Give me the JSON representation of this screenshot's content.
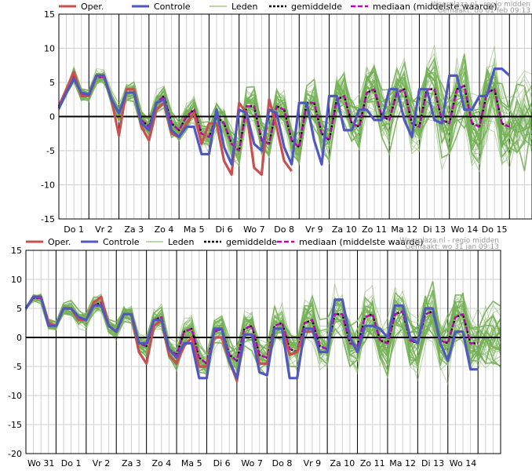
{
  "legend": {
    "oper": "Oper.",
    "controle": "Controle",
    "leden": "Leden",
    "gemiddelde": "gemiddelde",
    "mediaan": "mediaan (middelste waarde)"
  },
  "colors": {
    "oper": "#c85050",
    "controle": "#5058c0",
    "members": "#74b056",
    "mean": "#000000",
    "median": "#c000c0",
    "grid_major": "#000000",
    "grid_minor": "#cfcfcf"
  },
  "chart_data": [
    {
      "type": "line",
      "credit_line1": "Weerplaza.nl - regio midden",
      "credit_line2": "Gemaakt: do 01 feb 09:13",
      "ylim": [
        -15,
        15
      ],
      "yticks": [
        15,
        10,
        5,
        0,
        -5,
        -10,
        -15
      ],
      "xlim": [
        0,
        63
      ],
      "x_step_hours": 6,
      "day_labels": [
        "Do 1",
        "Vr 2",
        "Za 3",
        "Zo 4",
        "Ma 5",
        "Di 6",
        "Wo 7",
        "Do 8",
        "Vr 9",
        "Za 10",
        "Zo 11",
        "Ma 12",
        "Di 13",
        "Wo 14",
        "Do 15"
      ],
      "day_boundaries": [
        0,
        4,
        8,
        12,
        16,
        20,
        24,
        28,
        32,
        36,
        40,
        44,
        48,
        52,
        56,
        60
      ],
      "series": [
        {
          "name": "Oper.",
          "values": [
            1.5,
            4,
            6.5,
            3,
            3,
            6,
            6,
            2.5,
            -2.8,
            4,
            4,
            -1.5,
            -3.5,
            1,
            2,
            -2.5,
            -3,
            -1,
            0.5,
            -4,
            -1,
            -1,
            -6.5,
            -8.5,
            2,
            0.5,
            -7.5,
            -8.5,
            2.5,
            -1.5,
            -6.5,
            -8
          ]
        },
        {
          "name": "Controle",
          "values": [
            1.2,
            3.5,
            5.5,
            3.5,
            3.2,
            6,
            6,
            2.5,
            0.5,
            3.5,
            3.5,
            -1,
            -2,
            2,
            2.5,
            -2,
            -3,
            -1.5,
            -1.5,
            -5.5,
            -5.5,
            1,
            -4.5,
            -7,
            1,
            0.5,
            -4,
            -5,
            1,
            0.5,
            -4.5,
            -7,
            2,
            2,
            -3.5,
            -7,
            3,
            3,
            -2,
            -2,
            1,
            1,
            -0.5,
            -0.5,
            4,
            4,
            -0.5,
            -3,
            4,
            4,
            -0.5,
            -1,
            6,
            6,
            1,
            1,
            3,
            3,
            7,
            7,
            6
          ]
        },
        {
          "name": "gemiddelde",
          "values": [
            1.3,
            3.5,
            6,
            3.2,
            3,
            5.8,
            5.8,
            2.5,
            0.5,
            3.5,
            3.5,
            -0.5,
            -1.5,
            2,
            3,
            -1,
            -2,
            0,
            1,
            -2.5,
            -3,
            0,
            -1,
            -4,
            -5,
            1.5,
            1.5,
            -3.5,
            -4,
            1.5,
            1,
            -3.5,
            -4.5,
            2,
            2,
            -2.5,
            -3.5,
            2.5,
            3,
            -1,
            -1.5,
            3.5,
            4,
            0,
            -0.5,
            3.5,
            4,
            -1,
            -1.5,
            4,
            4,
            -0.5,
            -1,
            4,
            4.5,
            -1,
            -1.5,
            3.5,
            4,
            -1,
            -1.5
          ]
        },
        {
          "name": "mediaan (middelste waarde)",
          "values": [
            1.3,
            3.5,
            6,
            3.2,
            3,
            5.8,
            5.8,
            2.5,
            0.5,
            3.5,
            3.5,
            -0.5,
            -1.5,
            2,
            3,
            -1,
            -2,
            0,
            1,
            -2.5,
            -3,
            0,
            -1,
            -4,
            -5,
            1.5,
            1.5,
            -3.5,
            -4,
            1.5,
            1,
            -3.5,
            -4.5,
            2,
            2,
            -2.5,
            -3.5,
            2.5,
            3,
            -1,
            -1.5,
            3.5,
            4,
            0,
            -0.5,
            3.5,
            4,
            -1,
            -1.5,
            4,
            4,
            -0.5,
            -1,
            4,
            4.5,
            -1,
            -1.5,
            3.5,
            4,
            -1,
            -1.5
          ]
        }
      ],
      "members_count": 40,
      "member_spread": [
        0.5,
        0.8,
        1,
        1,
        1,
        1,
        1.2,
        1.5,
        1.5,
        1.5,
        1.5,
        1.5,
        1.5,
        1.5,
        1.5,
        1.5,
        2,
        2,
        2,
        2,
        2,
        2,
        2.5,
        2.5,
        2.5,
        2.5,
        2.5,
        2.5,
        3,
        3,
        3,
        3,
        3,
        3,
        3.5,
        3.5,
        3.5,
        3.5,
        4,
        4,
        4,
        4,
        4,
        4,
        4.5,
        4.5,
        4.5,
        4.5,
        5,
        5,
        5,
        5,
        5,
        5,
        5.5,
        5.5,
        5.5,
        5.5,
        6,
        6,
        6
      ]
    },
    {
      "type": "line",
      "credit_line1": "Weerplaza.nl - regio midden",
      "credit_line2": "Gemaakt: wo 31 jan 09:13",
      "ylim": [
        -20,
        15
      ],
      "yticks": [
        15,
        10,
        5,
        0,
        -5,
        -10,
        -15,
        -20
      ],
      "xlim": [
        0,
        63
      ],
      "x_step_hours": 6,
      "day_labels": [
        "Wo 31",
        "Do 1",
        "Vr 2",
        "Za 3",
        "Zo 4",
        "Ma 5",
        "Di 6",
        "Wo 7",
        "Do 8",
        "Vr 9",
        "Za 10",
        "Zo 11",
        "Ma 12",
        "Di 13",
        "Wo 14"
      ],
      "day_boundaries": [
        0,
        4,
        8,
        12,
        16,
        20,
        24,
        28,
        32,
        36,
        40,
        44,
        48,
        52,
        56,
        60
      ],
      "series": [
        {
          "name": "Oper.",
          "values": [
            5,
            7,
            7,
            2.5,
            2,
            5,
            5,
            3,
            3,
            6,
            7,
            2,
            1,
            4,
            4,
            -2.5,
            -4.5,
            2,
            3,
            -3,
            -4.5,
            -1.5,
            0,
            -5,
            -5,
            0,
            0,
            -4,
            -7.5,
            0.5,
            0.5,
            -4.5,
            -4.5,
            1.5,
            1.5,
            -3,
            -2.5,
            1,
            1
          ]
        },
        {
          "name": "Controle",
          "values": [
            5,
            7,
            7,
            2,
            2,
            5,
            5,
            3.5,
            3,
            5.5,
            5.5,
            2,
            1,
            4,
            4,
            -1,
            -1,
            3,
            3,
            -2,
            -3.5,
            -1,
            -1,
            -7,
            -7,
            1.5,
            1.5,
            -4,
            -7,
            0.5,
            0.5,
            -6,
            -6.5,
            1.5,
            1.5,
            -7,
            -7,
            1.5,
            1.5,
            -2.5,
            -2.5,
            6.5,
            6.5,
            0,
            -2.5,
            2,
            2,
            1.5,
            0,
            5.5,
            5.5,
            0,
            -1,
            5,
            5,
            -1,
            -4,
            1,
            1,
            -5.5,
            -5.5
          ]
        },
        {
          "name": "gemiddelde",
          "values": [
            5,
            6.8,
            6.8,
            2.3,
            2,
            5,
            5,
            3.3,
            3,
            5.5,
            6,
            2,
            1,
            4,
            4,
            -1,
            -1.5,
            3,
            3.5,
            -2,
            -3,
            1,
            1.5,
            -3.5,
            -4.5,
            1,
            1.5,
            -3,
            -4,
            1.5,
            2,
            -3,
            -3.5,
            2,
            2.5,
            -2,
            -2.5,
            2.5,
            3,
            -1.5,
            -2,
            4,
            4,
            -1,
            -1.5,
            3.5,
            4,
            -0.5,
            -1,
            4,
            4.5,
            -0.5,
            -1,
            4,
            4.5,
            -0.5,
            -1,
            3.5,
            4,
            -1,
            -1
          ]
        },
        {
          "name": "mediaan (middelste waarde)",
          "values": [
            5,
            6.8,
            6.8,
            2.3,
            2,
            5,
            5,
            3.3,
            3,
            5.5,
            6,
            2,
            1,
            4,
            4,
            -1,
            -1.5,
            3,
            3.5,
            -2,
            -3,
            1,
            1.5,
            -3.5,
            -4.5,
            1,
            1.5,
            -3,
            -4,
            1.5,
            2,
            -3,
            -3.5,
            2,
            2.5,
            -2,
            -2.5,
            2.5,
            3,
            -1.5,
            -2,
            4,
            4,
            -1,
            -1.5,
            3.5,
            4,
            -0.5,
            -1,
            4,
            4.5,
            -0.5,
            -1,
            4,
            4.5,
            -0.5,
            -1,
            3.5,
            4,
            -1,
            -1
          ]
        }
      ],
      "members_count": 40,
      "member_spread": [
        0.5,
        0.8,
        1,
        1,
        1,
        1,
        1.2,
        1.5,
        1.5,
        1.5,
        1.5,
        1.5,
        1.5,
        1.5,
        1.5,
        1.5,
        2,
        2,
        2,
        2,
        2,
        2,
        2.5,
        2.5,
        2.5,
        2.5,
        2.5,
        2.5,
        3,
        3,
        3,
        3,
        3,
        3,
        3.5,
        3.5,
        3.5,
        3.5,
        4,
        4,
        4,
        4,
        4,
        4,
        4.5,
        4.5,
        4.5,
        4.5,
        5,
        5,
        5,
        5,
        5,
        5,
        5.5,
        5.5,
        5.5,
        5.5,
        6,
        6,
        6
      ]
    }
  ]
}
